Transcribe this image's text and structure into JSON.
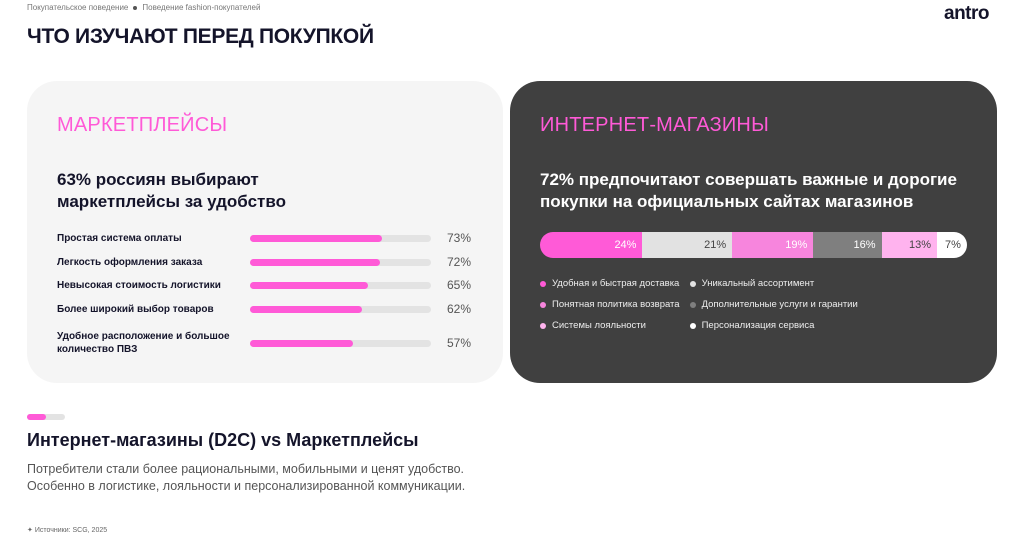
{
  "breadcrumb": [
    "Покупательское поведение",
    "Поведение fashion-покупателей"
  ],
  "logo": "antro",
  "title": "ЧТО ИЗУЧАЮТ ПЕРЕД ПОКУПКОЙ",
  "marketplaces": {
    "title": "МАРКЕТПЛЕЙСЫ",
    "lead": "63% россиян выбирают маркетплейсы за удобство",
    "items": [
      {
        "label": "Простая система оплаты",
        "value": 73,
        "text": "73%"
      },
      {
        "label": "Легкость оформления заказа",
        "value": 72,
        "text": "72%"
      },
      {
        "label": "Невысокая стоимость логистики",
        "value": 65,
        "text": "65%"
      },
      {
        "label": "Более широкий выбор товаров",
        "value": 62,
        "text": "62%"
      },
      {
        "label": "Удобное расположение и большое количество ПВЗ",
        "value": 57,
        "text": "57%"
      }
    ]
  },
  "stores": {
    "title": "ИНТЕРНЕТ-МАГАЗИНЫ",
    "lead": "72% предпочитают совершать важные и дорогие покупки на официальных сайтах магазинов",
    "segments": [
      {
        "label": "Удобная и быстрая доставка",
        "value": 24,
        "text": "24%",
        "color": "#ff5ad7",
        "text_color": "#ffffff"
      },
      {
        "label": "Уникальный ассортимент",
        "value": 21,
        "text": "21%",
        "color": "#e2e2e2",
        "text_color": "#444444"
      },
      {
        "label": "Понятная политика возврата",
        "value": 19,
        "text": "19%",
        "color": "#f785dd",
        "text_color": "#ffffff"
      },
      {
        "label": "Дополнительные услуги и гарантии",
        "value": 16,
        "text": "16%",
        "color": "#7f7f7f",
        "text_color": "#ffffff"
      },
      {
        "label": "Системы лояльности",
        "value": 13,
        "text": "13%",
        "color": "#ffb3ee",
        "text_color": "#444444"
      },
      {
        "label": "Персонализация сервиса",
        "value": 7,
        "text": "7%",
        "color": "#ffffff",
        "text_color": "#444444"
      }
    ]
  },
  "accent": "#ff5ad7",
  "section": {
    "title": "Интернет-магазины (D2C) vs Маркетплейсы",
    "desc_lines": [
      "Потребители стали более рациональными, мобильными и ценят удобство.",
      "Особенно в логистике, лояльности и персонализированной коммуникации."
    ]
  },
  "source": "Источники:  SCG, 2025"
}
